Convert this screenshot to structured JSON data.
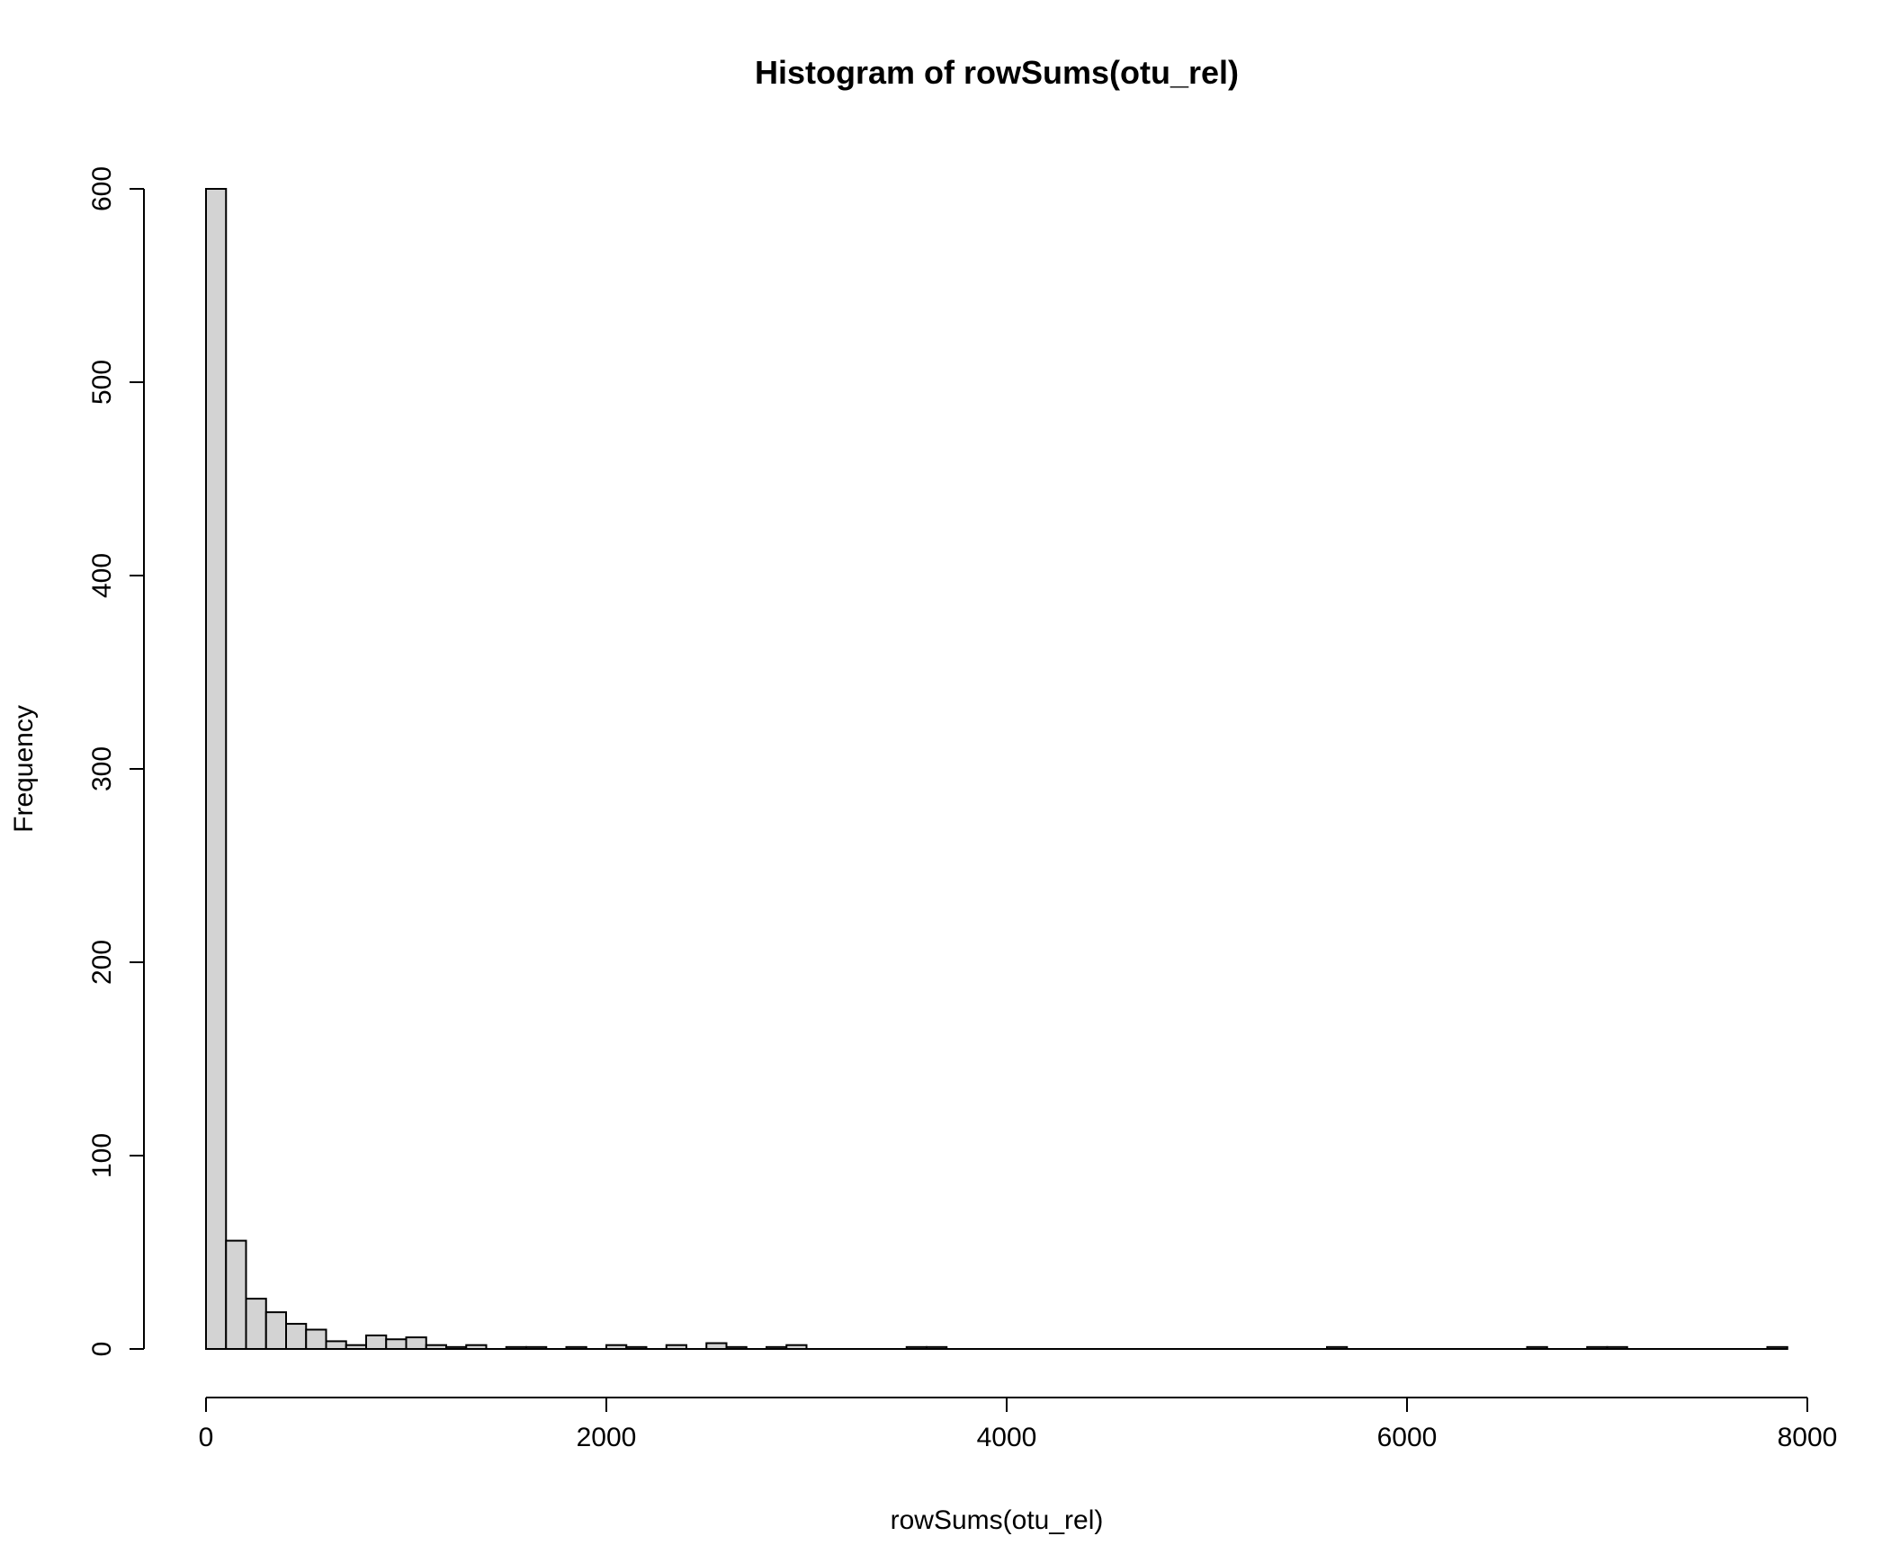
{
  "chart_data": {
    "type": "bar",
    "title": "Histogram of rowSums(otu_rel)",
    "xlabel": "rowSums(otu_rel)",
    "ylabel": "Frequency",
    "bin_width": 100,
    "xlim": [
      0,
      8000
    ],
    "ylim": [
      0,
      600
    ],
    "x_ticks": [
      0,
      2000,
      4000,
      6000,
      8000
    ],
    "y_ticks": [
      0,
      100,
      200,
      300,
      400,
      500,
      600
    ],
    "grid": false,
    "legend": "none",
    "bar_color": "#d3d3d3",
    "edge_color": "#000000",
    "bins": [
      {
        "x0": 0,
        "x1": 100,
        "count": 600
      },
      {
        "x0": 100,
        "x1": 200,
        "count": 56
      },
      {
        "x0": 200,
        "x1": 300,
        "count": 26
      },
      {
        "x0": 300,
        "x1": 400,
        "count": 19
      },
      {
        "x0": 400,
        "x1": 500,
        "count": 13
      },
      {
        "x0": 500,
        "x1": 600,
        "count": 10
      },
      {
        "x0": 600,
        "x1": 700,
        "count": 4
      },
      {
        "x0": 700,
        "x1": 800,
        "count": 2
      },
      {
        "x0": 800,
        "x1": 900,
        "count": 7
      },
      {
        "x0": 900,
        "x1": 1000,
        "count": 5
      },
      {
        "x0": 1000,
        "x1": 1100,
        "count": 6
      },
      {
        "x0": 1100,
        "x1": 1200,
        "count": 2
      },
      {
        "x0": 1200,
        "x1": 1300,
        "count": 1
      },
      {
        "x0": 1300,
        "x1": 1400,
        "count": 2
      },
      {
        "x0": 1500,
        "x1": 1600,
        "count": 1
      },
      {
        "x0": 1600,
        "x1": 1700,
        "count": 1
      },
      {
        "x0": 1800,
        "x1": 1900,
        "count": 1
      },
      {
        "x0": 2000,
        "x1": 2100,
        "count": 2
      },
      {
        "x0": 2100,
        "x1": 2200,
        "count": 1
      },
      {
        "x0": 2300,
        "x1": 2400,
        "count": 2
      },
      {
        "x0": 2500,
        "x1": 2600,
        "count": 3
      },
      {
        "x0": 2600,
        "x1": 2700,
        "count": 1
      },
      {
        "x0": 2800,
        "x1": 2900,
        "count": 1
      },
      {
        "x0": 2900,
        "x1": 3000,
        "count": 2
      },
      {
        "x0": 3500,
        "x1": 3600,
        "count": 1
      },
      {
        "x0": 3600,
        "x1": 3700,
        "count": 1
      },
      {
        "x0": 5600,
        "x1": 5700,
        "count": 1
      },
      {
        "x0": 6600,
        "x1": 6700,
        "count": 1
      },
      {
        "x0": 6900,
        "x1": 7000,
        "count": 1
      },
      {
        "x0": 7000,
        "x1": 7100,
        "count": 1
      },
      {
        "x0": 7800,
        "x1": 7900,
        "count": 1
      }
    ]
  }
}
